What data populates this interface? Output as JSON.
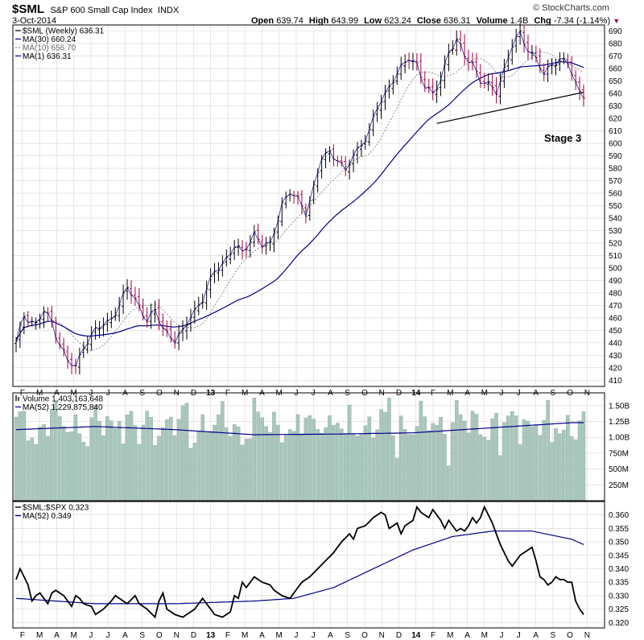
{
  "header": {
    "symbol": "$SML",
    "name": "S&P 600 Small Cap Index",
    "exchange": "INDX",
    "date": "3-Oct-2014",
    "open_label": "Open",
    "open": "639.74",
    "high_label": "High",
    "high": "643.99",
    "low_label": "Low",
    "low": "623.24",
    "close_label": "Close",
    "close": "636.31",
    "volume_label": "Volume",
    "volume": "1.4B",
    "chg_label": "Chg",
    "chg": "-7.34 (-1.14%)",
    "copyright": "© StockCharts.com"
  },
  "colors": {
    "ma30": "#00008b",
    "ma10": "#8c8c8c",
    "up_bar": "#000000",
    "down_bar": "#a0003c",
    "volume_fill": "#a9c7bc",
    "volume_edge": "#8faa9f",
    "grid": "#d6d6d6",
    "down_arrow": "#a0003c"
  },
  "annotation": {
    "stage": "Stage 3"
  },
  "x_axis_labels": [
    "F",
    "M",
    "A",
    "M",
    "J",
    "J",
    "A",
    "S",
    "O",
    "N",
    "D",
    "13",
    "F",
    "M",
    "A",
    "M",
    "J",
    "J",
    "A",
    "S",
    "O",
    "N",
    "D",
    "14",
    "F",
    "M",
    "A",
    "M",
    "J",
    "J",
    "A",
    "S",
    "O",
    "N"
  ],
  "chart_data": [
    {
      "type": "ohlc",
      "title": "$SML (Weekly) 636.31",
      "legend": [
        "$SML (Weekly) 636.31",
        "MA(30) 660.24",
        "MA(10) 656.70",
        "MA(1) 636.31"
      ],
      "ylim": [
        405,
        695
      ],
      "yticks": [
        410,
        420,
        430,
        440,
        450,
        460,
        470,
        480,
        490,
        500,
        510,
        520,
        530,
        540,
        550,
        560,
        570,
        580,
        590,
        600,
        610,
        620,
        630,
        640,
        650,
        660,
        670,
        680,
        690
      ],
      "close_keypoints": [
        [
          0,
          440
        ],
        [
          2,
          462
        ],
        [
          5,
          455
        ],
        [
          7,
          465
        ],
        [
          9,
          457
        ],
        [
          10,
          447
        ],
        [
          13,
          425
        ],
        [
          15,
          420
        ],
        [
          17,
          438
        ],
        [
          20,
          450
        ],
        [
          23,
          456
        ],
        [
          26,
          470
        ],
        [
          28,
          484
        ],
        [
          31,
          470
        ],
        [
          33,
          458
        ],
        [
          35,
          465
        ],
        [
          37,
          452
        ],
        [
          40,
          442
        ],
        [
          42,
          448
        ],
        [
          44,
          462
        ],
        [
          47,
          475
        ],
        [
          50,
          497
        ],
        [
          53,
          508
        ],
        [
          55,
          517
        ],
        [
          57,
          512
        ],
        [
          60,
          528
        ],
        [
          62,
          518
        ],
        [
          64,
          518
        ],
        [
          67,
          552
        ],
        [
          69,
          560
        ],
        [
          71,
          555
        ],
        [
          73,
          545
        ],
        [
          75,
          565
        ],
        [
          77,
          588
        ],
        [
          79,
          593
        ],
        [
          81,
          588
        ],
        [
          83,
          577
        ],
        [
          85,
          590
        ],
        [
          87,
          600
        ],
        [
          89,
          610
        ],
        [
          91,
          628
        ],
        [
          93,
          640
        ],
        [
          95,
          652
        ],
        [
          97,
          660
        ],
        [
          99,
          668
        ],
        [
          101,
          664
        ],
        [
          103,
          646
        ],
        [
          105,
          638
        ],
        [
          107,
          652
        ],
        [
          109,
          674
        ],
        [
          111,
          682
        ],
        [
          113,
          670
        ],
        [
          115,
          665
        ],
        [
          117,
          650
        ],
        [
          119,
          646
        ],
        [
          121,
          642
        ],
        [
          123,
          660
        ],
        [
          125,
          678
        ],
        [
          127,
          688
        ],
        [
          129,
          676
        ],
        [
          131,
          668
        ],
        [
          133,
          654
        ],
        [
          135,
          664
        ],
        [
          137,
          668
        ],
        [
          139,
          664
        ],
        [
          141,
          647
        ],
        [
          143,
          636
        ]
      ],
      "ma30_end": 660.24,
      "ma10_end": 656.7,
      "ma1_end": 636.31,
      "trendline": {
        "from": [
          106,
          616
        ],
        "to": [
          143,
          641
        ]
      },
      "x_count": 144
    },
    {
      "type": "bar",
      "title": "Volume 1,403,163,648",
      "legend": [
        "Volume 1,403,163,648",
        "MA(52) 1,229,875,840"
      ],
      "units": "billion shares",
      "ylim": [
        0,
        1.7
      ],
      "ytick_labels": [
        "250M",
        "500M",
        "750M",
        "1.00B",
        "1.25B",
        "1.50B"
      ],
      "ytick_values": [
        0.25,
        0.5,
        0.75,
        1.0,
        1.25,
        1.5
      ],
      "volume_base": 1.2,
      "ma52_path": [
        [
          0,
          1.12
        ],
        [
          20,
          1.17
        ],
        [
          40,
          1.12
        ],
        [
          60,
          1.04
        ],
        [
          80,
          1.05
        ],
        [
          100,
          1.07
        ],
        [
          120,
          1.15
        ],
        [
          140,
          1.23
        ],
        [
          143,
          1.23
        ]
      ]
    },
    {
      "type": "line",
      "title": "$SML:$SPX 0.323",
      "legend": [
        "$SML:$SPX 0.323",
        "MA(52) 0.349"
      ],
      "ylim": [
        0.318,
        0.365
      ],
      "yticks": [
        0.32,
        0.325,
        0.33,
        0.335,
        0.34,
        0.345,
        0.35,
        0.355,
        0.36
      ],
      "ratio_keypoints": [
        [
          0,
          0.336
        ],
        [
          1,
          0.34
        ],
        [
          3,
          0.334
        ],
        [
          4,
          0.328
        ],
        [
          5,
          0.33
        ],
        [
          6,
          0.331
        ],
        [
          8,
          0.327
        ],
        [
          9,
          0.331
        ],
        [
          10,
          0.332
        ],
        [
          12,
          0.33
        ],
        [
          13,
          0.328
        ],
        [
          14,
          0.326
        ],
        [
          15,
          0.33
        ],
        [
          16,
          0.329
        ],
        [
          17,
          0.327
        ],
        [
          19,
          0.326
        ],
        [
          20,
          0.323
        ],
        [
          22,
          0.325
        ],
        [
          24,
          0.328
        ],
        [
          25,
          0.33
        ],
        [
          27,
          0.328
        ],
        [
          28,
          0.327
        ],
        [
          30,
          0.33
        ],
        [
          31,
          0.327
        ],
        [
          33,
          0.325
        ],
        [
          35,
          0.322
        ],
        [
          36,
          0.328
        ],
        [
          37,
          0.331
        ],
        [
          38,
          0.325
        ],
        [
          40,
          0.323
        ],
        [
          42,
          0.322
        ],
        [
          44,
          0.324
        ],
        [
          45,
          0.325
        ],
        [
          47,
          0.329
        ],
        [
          48,
          0.327
        ],
        [
          50,
          0.323
        ],
        [
          52,
          0.322
        ],
        [
          54,
          0.324
        ],
        [
          55,
          0.33
        ],
        [
          56,
          0.329
        ],
        [
          57,
          0.335
        ],
        [
          58,
          0.333
        ],
        [
          60,
          0.337
        ],
        [
          62,
          0.335
        ],
        [
          64,
          0.334
        ],
        [
          65,
          0.332
        ],
        [
          67,
          0.33
        ],
        [
          69,
          0.329
        ],
        [
          70,
          0.331
        ],
        [
          72,
          0.335
        ],
        [
          74,
          0.337
        ],
        [
          76,
          0.34
        ],
        [
          78,
          0.343
        ],
        [
          80,
          0.346
        ],
        [
          82,
          0.35
        ],
        [
          84,
          0.353
        ],
        [
          85,
          0.351
        ],
        [
          86,
          0.355
        ],
        [
          88,
          0.356
        ],
        [
          90,
          0.359
        ],
        [
          92,
          0.361
        ],
        [
          93,
          0.36
        ],
        [
          94,
          0.355
        ],
        [
          96,
          0.357
        ],
        [
          97,
          0.353
        ],
        [
          98,
          0.356
        ],
        [
          100,
          0.358
        ],
        [
          101,
          0.363
        ],
        [
          102,
          0.361
        ],
        [
          104,
          0.359
        ],
        [
          105,
          0.362
        ],
        [
          106,
          0.36
        ],
        [
          107,
          0.358
        ],
        [
          108,
          0.355
        ],
        [
          109,
          0.358
        ],
        [
          110,
          0.356
        ],
        [
          111,
          0.354
        ],
        [
          112,
          0.355
        ],
        [
          113,
          0.354
        ],
        [
          114,
          0.356
        ],
        [
          115,
          0.359
        ],
        [
          116,
          0.357
        ],
        [
          117,
          0.359
        ],
        [
          118,
          0.363
        ],
        [
          119,
          0.36
        ],
        [
          120,
          0.357
        ],
        [
          121,
          0.353
        ],
        [
          122,
          0.349
        ],
        [
          123,
          0.346
        ],
        [
          124,
          0.343
        ],
        [
          125,
          0.341
        ],
        [
          126,
          0.343
        ],
        [
          127,
          0.345
        ],
        [
          128,
          0.346
        ],
        [
          129,
          0.347
        ],
        [
          130,
          0.348
        ],
        [
          131,
          0.343
        ],
        [
          132,
          0.337
        ],
        [
          133,
          0.336
        ],
        [
          134,
          0.334
        ],
        [
          135,
          0.335
        ],
        [
          136,
          0.337
        ],
        [
          137,
          0.336
        ],
        [
          138,
          0.336
        ],
        [
          139,
          0.335
        ],
        [
          140,
          0.335
        ],
        [
          141,
          0.328
        ],
        [
          142,
          0.325
        ],
        [
          143,
          0.323
        ]
      ],
      "ma52_keypoints": [
        [
          0,
          0.329
        ],
        [
          20,
          0.327
        ],
        [
          40,
          0.327
        ],
        [
          60,
          0.328
        ],
        [
          70,
          0.329
        ],
        [
          80,
          0.333
        ],
        [
          90,
          0.34
        ],
        [
          100,
          0.347
        ],
        [
          110,
          0.352
        ],
        [
          120,
          0.354
        ],
        [
          130,
          0.354
        ],
        [
          140,
          0.351
        ],
        [
          143,
          0.349
        ]
      ]
    }
  ]
}
